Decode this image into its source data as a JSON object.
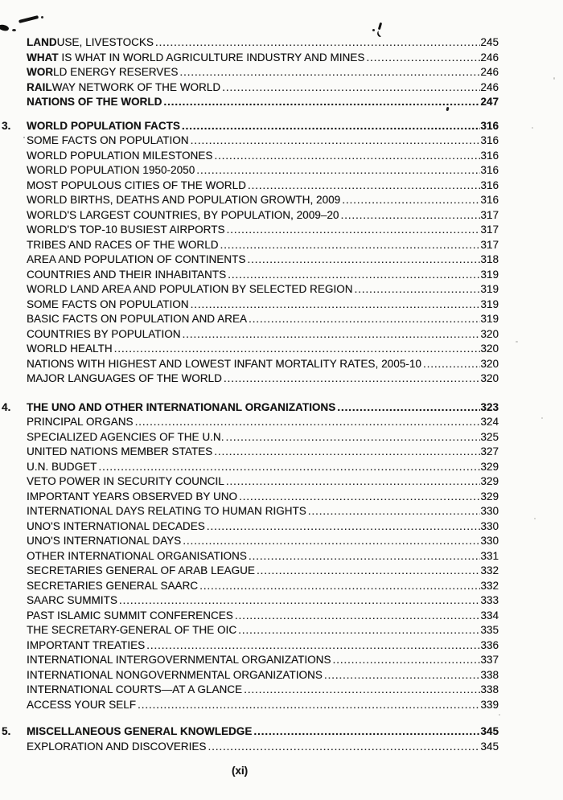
{
  "page": {
    "footer": "(xi)"
  },
  "toc": {
    "sections": [
      {
        "number": "",
        "heading": null,
        "items": [
          {
            "text": "LANDUSE, LIVESTOCKS",
            "page": "245",
            "bold_len": 4
          },
          {
            "text": "WHAT IS WHAT IN WORLD AGRICULTURE INDUSTRY AND MINES",
            "page": "246",
            "bold_len": 4
          },
          {
            "text": "WORLD ENERGY RESERVES",
            "page": "246",
            "bold_len": 3
          },
          {
            "text": "RAILWAY NETWORK OF THE WORLD",
            "page": "246",
            "bold_len": 4
          },
          {
            "text": "NATIONS OF THE WORLD",
            "page": "247",
            "bold": true
          }
        ]
      },
      {
        "number": "3.",
        "heading": {
          "text": "WORLD POPULATION FACTS",
          "page": "316"
        },
        "items": [
          {
            "text": "SOME FACTS ON POPULATION",
            "page": "316"
          },
          {
            "text": "WORLD POPULATION MILESTONES",
            "page": "316"
          },
          {
            "text": "WORLD POPULATION 1950-2050",
            "page": "316"
          },
          {
            "text": "MOST POPULOUS CITIES OF THE WORLD",
            "page": "316"
          },
          {
            "text": "WORLD BIRTHS, DEATHS AND POPULATION GROWTH, 2009",
            "page": "316"
          },
          {
            "text": "WORLD'S LARGEST COUNTRIES, BY POPULATION, 2009–20",
            "page": "317"
          },
          {
            "text": "WORLD'S TOP-10 BUSIEST AIRPORTS",
            "page": "317"
          },
          {
            "text": "TRIBES AND RACES OF THE WORLD",
            "page": "317"
          },
          {
            "text": "AREA AND POPULATION OF CONTINENTS",
            "page": "318"
          },
          {
            "text": "COUNTRIES AND THEIR INHABITANTS",
            "page": "319"
          },
          {
            "text": "WORLD LAND AREA AND POPULATION BY SELECTED REGION",
            "page": "319"
          },
          {
            "text": "SOME FACTS ON POPULATION",
            "page": "319"
          },
          {
            "text": "BASIC FACTS ON POPULATION AND AREA",
            "page": "319"
          },
          {
            "text": "COUNTRIES BY POPULATION",
            "page": "320"
          },
          {
            "text": "WORLD HEALTH",
            "page": "320"
          },
          {
            "text": "NATIONS WITH HIGHEST AND LOWEST INFANT MORTALITY RATES, 2005-10",
            "page": "320"
          },
          {
            "text": "MAJOR LANGUAGES OF THE WORLD",
            "page": "320"
          }
        ]
      },
      {
        "number": "4.",
        "heading": {
          "text": "THE UNO AND OTHER INTERNATIONANL ORGANIZATIONS",
          "page": "323"
        },
        "items": [
          {
            "text": "PRINCIPAL ORGANS",
            "page": "324"
          },
          {
            "text": "SPECIALIZED AGENCIES OF THE U.N.",
            "page": "325"
          },
          {
            "text": "UNITED NATIONS MEMBER STATES",
            "page": "327"
          },
          {
            "text": "U.N. BUDGET",
            "page": "329"
          },
          {
            "text": "VETO POWER IN SECURITY COUNCIL",
            "page": "329"
          },
          {
            "text": "IMPORTANT YEARS OBSERVED BY UNO",
            "page": "329"
          },
          {
            "text": "INTERNATIONAL DAYS RELATING TO HUMAN RIGHTS",
            "page": "330"
          },
          {
            "text": "UNO'S INTERNATIONAL DECADES",
            "page": "330"
          },
          {
            "text": "UNO'S INTERNATIONAL DAYS",
            "page": "330"
          },
          {
            "text": "OTHER INTERNATIONAL ORGANISATIONS",
            "page": "331"
          },
          {
            "text": "SECRETARIES GENERAL OF ARAB LEAGUE",
            "page": "332"
          },
          {
            "text": "SECRETARIES GENERAL SAARC",
            "page": "332"
          },
          {
            "text": "SAARC SUMMITS",
            "page": "333"
          },
          {
            "text": "PAST ISLAMIC SUMMIT CONFERENCES",
            "page": "334"
          },
          {
            "text": "THE SECRETARY-GENERAL OF THE OIC",
            "page": "335"
          },
          {
            "text": "IMPORTANT TREATIES",
            "page": "336"
          },
          {
            "text": "INTERNATIONAL INTERGOVERNMENTAL ORGANIZATIONS",
            "page": "337"
          },
          {
            "text": "INTERNATIONAL NONGOVERNMENTAL ORGANIZATIONS",
            "page": "338"
          },
          {
            "text": "INTERNATIONAL COURTS—AT A GLANCE",
            "page": "338"
          },
          {
            "text": "ACCESS YOUR SELF",
            "page": "339"
          }
        ]
      },
      {
        "number": "5.",
        "heading": {
          "text": "MISCELLANEOUS GENERAL KNOWLEDGE",
          "page": "345"
        },
        "items": [
          {
            "text": "EXPLORATION AND DISCOVERIES",
            "page": "345"
          }
        ]
      }
    ]
  }
}
